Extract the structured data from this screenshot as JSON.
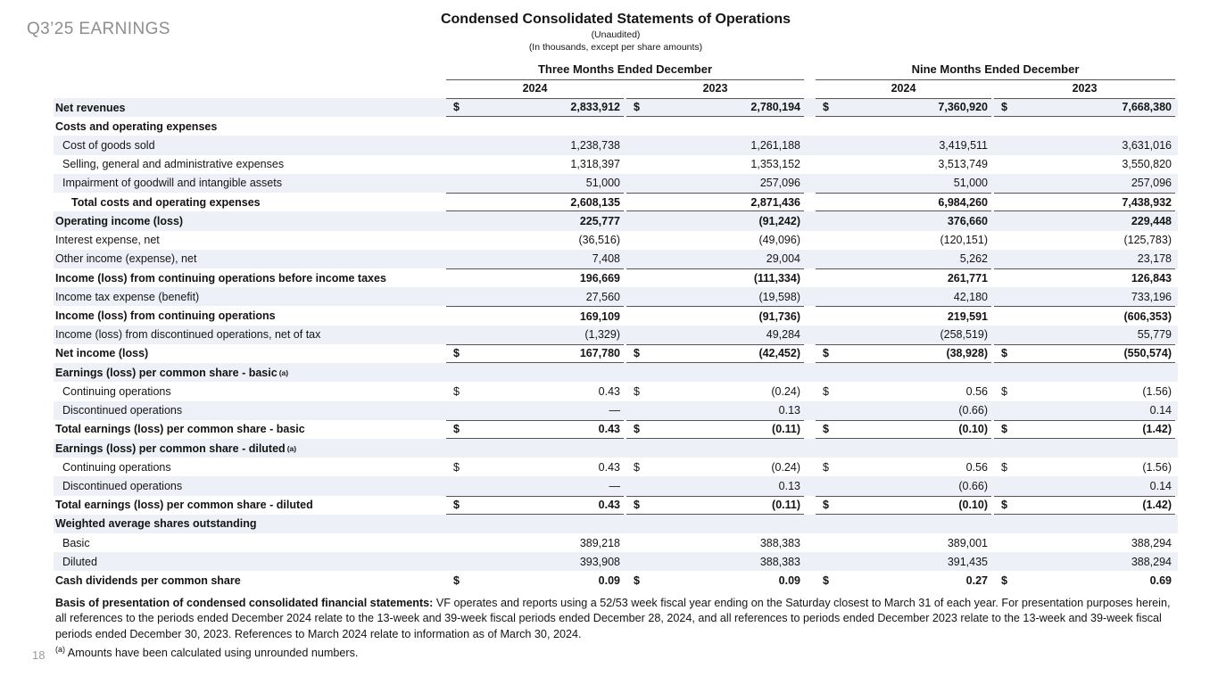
{
  "slide": {
    "tag": "Q3’25 EARNINGS",
    "page_number": "18"
  },
  "header": {
    "title": "Condensed Consolidated Statements of Operations",
    "subtitle1": "(Unaudited)",
    "subtitle2": "(In thousands, except per share amounts)"
  },
  "colors": {
    "stripe": "#edf1f7",
    "rule": "#555555"
  },
  "table": {
    "col_groups": [
      {
        "label": "Three Months Ended December",
        "years": [
          "2024",
          "2023"
        ]
      },
      {
        "label": "Nine Months Ended December",
        "years": [
          "2024",
          "2023"
        ]
      }
    ],
    "rows": [
      {
        "label": "Net revenues",
        "indent": 0,
        "bold": true,
        "dollar": true,
        "values": [
          "2,833,912",
          "2,780,194",
          "7,360,920",
          "7,668,380"
        ],
        "border_bottom": true,
        "shaded": true
      },
      {
        "label": "Costs and operating expenses",
        "indent": 0,
        "bold": true,
        "values": [],
        "shaded": false
      },
      {
        "label": "Cost of goods sold",
        "indent": 1,
        "values": [
          "1,238,738",
          "1,261,188",
          "3,419,511",
          "3,631,016"
        ],
        "shaded": true
      },
      {
        "label": "Selling, general and administrative expenses",
        "indent": 1,
        "values": [
          "1,318,397",
          "1,353,152",
          "3,513,749",
          "3,550,820"
        ],
        "shaded": false
      },
      {
        "label": "Impairment of goodwill and intangible assets",
        "indent": 1,
        "values": [
          "51,000",
          "257,096",
          "51,000",
          "257,096"
        ],
        "shaded": true
      },
      {
        "label": "Total costs and operating expenses",
        "indent": 2,
        "bold": true,
        "values": [
          "2,608,135",
          "2,871,436",
          "6,984,260",
          "7,438,932"
        ],
        "border_top": true,
        "border_bottom": true,
        "shaded": false
      },
      {
        "label": "Operating income (loss)",
        "indent": 0,
        "bold": true,
        "values": [
          "225,777",
          "(91,242)",
          "376,660",
          "229,448"
        ],
        "shaded": true
      },
      {
        "label": "Interest expense, net",
        "indent": 0,
        "values": [
          "(36,516)",
          "(49,096)",
          "(120,151)",
          "(125,783)"
        ],
        "shaded": false
      },
      {
        "label": "Other income (expense), net",
        "indent": 0,
        "values": [
          "7,408",
          "29,004",
          "5,262",
          "23,178"
        ],
        "shaded": true
      },
      {
        "label": "Income (loss) from continuing operations before income taxes",
        "indent": 0,
        "bold": true,
        "values": [
          "196,669",
          "(111,334)",
          "261,771",
          "126,843"
        ],
        "border_top": true,
        "shaded": false
      },
      {
        "label": "Income tax expense (benefit)",
        "indent": 0,
        "values": [
          "27,560",
          "(19,598)",
          "42,180",
          "733,196"
        ],
        "shaded": true
      },
      {
        "label": "Income (loss) from continuing operations",
        "indent": 0,
        "bold": true,
        "values": [
          "169,109",
          "(91,736)",
          "219,591",
          "(606,353)"
        ],
        "border_top": true,
        "shaded": false
      },
      {
        "label": "Income (loss) from discontinued operations, net of tax",
        "indent": 0,
        "values": [
          "(1,329)",
          "49,284",
          "(258,519)",
          "55,779"
        ],
        "shaded": true
      },
      {
        "label": "Net income (loss)",
        "indent": 0,
        "bold": true,
        "dollar": true,
        "values": [
          "167,780",
          "(42,452)",
          "(38,928)",
          "(550,574)"
        ],
        "border_top": true,
        "border_bottom": true,
        "shaded": false
      },
      {
        "label": "Earnings (loss) per common share - basic",
        "sup": "(a)",
        "indent": 0,
        "bold": true,
        "values": [],
        "shaded": true
      },
      {
        "label": "Continuing operations",
        "indent": 1,
        "dollar": true,
        "values": [
          "0.43",
          "(0.24)",
          "0.56",
          "(1.56)"
        ],
        "shaded": false
      },
      {
        "label": "Discontinued operations",
        "indent": 1,
        "values": [
          "—",
          "0.13",
          "(0.66)",
          "0.14"
        ],
        "shaded": true
      },
      {
        "label": "Total earnings (loss) per common share - basic",
        "indent": 0,
        "bold": true,
        "dollar": true,
        "values": [
          "0.43",
          "(0.11)",
          "(0.10)",
          "(1.42)"
        ],
        "border_top": true,
        "border_bottom": true,
        "shaded": false
      },
      {
        "label": "Earnings (loss) per common share - diluted",
        "sup": "(a)",
        "indent": 0,
        "bold": true,
        "values": [],
        "shaded": true
      },
      {
        "label": "Continuing operations",
        "indent": 1,
        "dollar": true,
        "values": [
          "0.43",
          "(0.24)",
          "0.56",
          "(1.56)"
        ],
        "shaded": false
      },
      {
        "label": "Discontinued operations",
        "indent": 1,
        "values": [
          "—",
          "0.13",
          "(0.66)",
          "0.14"
        ],
        "shaded": true
      },
      {
        "label": "Total earnings (loss) per common share - diluted",
        "indent": 0,
        "bold": true,
        "dollar": true,
        "values": [
          "0.43",
          "(0.11)",
          "(0.10)",
          "(1.42)"
        ],
        "border_top": true,
        "border_bottom": true,
        "shaded": false
      },
      {
        "label": "Weighted average shares outstanding",
        "indent": 0,
        "bold": true,
        "values": [],
        "shaded": true
      },
      {
        "label": "Basic",
        "indent": 1,
        "values": [
          "389,218",
          "388,383",
          "389,001",
          "388,294"
        ],
        "shaded": false
      },
      {
        "label": "Diluted",
        "indent": 1,
        "values": [
          "393,908",
          "388,383",
          "391,435",
          "388,294"
        ],
        "shaded": true
      },
      {
        "label": "Cash dividends per common share",
        "indent": 0,
        "bold": true,
        "dollar": true,
        "values": [
          "0.09",
          "0.09",
          "0.27",
          "0.69"
        ],
        "shaded": false
      }
    ],
    "currency_symbol": "$"
  },
  "footnotes": {
    "basis_bold": "Basis of presentation of condensed consolidated financial statements:",
    "basis_text": " VF operates and reports using a 52/53 week fiscal year ending on the Saturday closest to March 31 of each year. For presentation purposes herein, all references to the periods ended December 2024 relate to the 13-week and 39-week fiscal periods ended December 28, 2024, and all references to periods ended December 2023 relate to the 13-week and 39-week fiscal periods ended December 30, 2023. References to March 2024 relate to information as of March 30, 2024.",
    "note_a_sup": "(a)",
    "note_a_text": " Amounts have been calculated using unrounded numbers."
  }
}
